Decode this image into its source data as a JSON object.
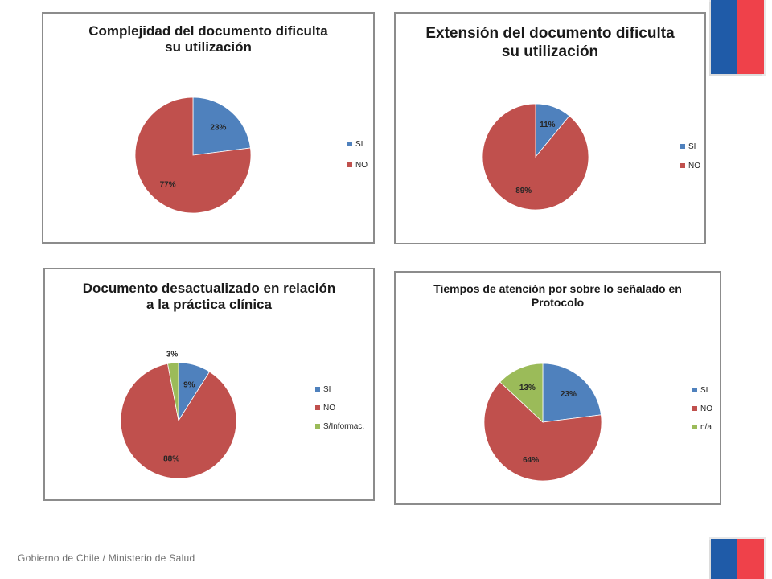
{
  "colors": {
    "SI": "#4f81bd",
    "NO": "#c0504d",
    "OTHER": "#9bbb59"
  },
  "footer": {
    "text": "Gobierno de Chile / Ministerio de Salud"
  },
  "chart_data": [
    {
      "type": "pie",
      "title": "Complejidad del documento dificulta su utilización",
      "categories": [
        "SI",
        "NO"
      ],
      "values": [
        23,
        77
      ],
      "labels": [
        "23%",
        "77%"
      ],
      "legend": "right"
    },
    {
      "type": "pie",
      "title": "Extensión del documento dificulta su utilización",
      "categories": [
        "SI",
        "NO"
      ],
      "values": [
        11,
        89
      ],
      "labels": [
        "11%",
        "89%"
      ],
      "legend": "right"
    },
    {
      "type": "pie",
      "title": "Documento desactualizado en relación a la práctica clínica",
      "categories": [
        "SI",
        "NO",
        "S/Informac."
      ],
      "values": [
        9,
        88,
        3
      ],
      "labels": [
        "9%",
        "88%",
        "3%"
      ],
      "legend": "right"
    },
    {
      "type": "pie",
      "title": "Tiempos de atención por sobre lo señalado en Protocolo",
      "categories": [
        "SI",
        "NO",
        "n/a"
      ],
      "values": [
        23,
        64,
        13
      ],
      "labels": [
        "23%",
        "64%",
        "13%"
      ],
      "legend": "right"
    }
  ]
}
